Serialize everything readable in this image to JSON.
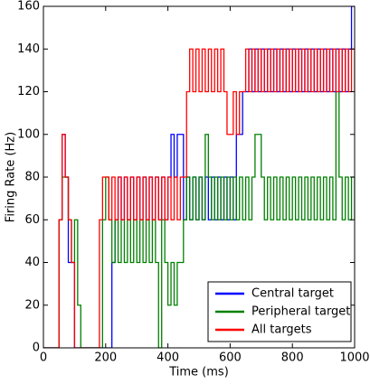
{
  "chart_data": {
    "type": "line",
    "step": true,
    "x_label": "Time (ms)",
    "y_label": "Firing Rate (Hz)",
    "x": [
      0,
      10,
      20,
      30,
      40,
      50,
      60,
      70,
      80,
      90,
      100,
      110,
      120,
      130,
      140,
      150,
      160,
      170,
      180,
      190,
      200,
      210,
      220,
      230,
      240,
      250,
      260,
      270,
      280,
      290,
      300,
      310,
      320,
      330,
      340,
      350,
      360,
      370,
      380,
      390,
      400,
      410,
      420,
      430,
      440,
      450,
      460,
      470,
      480,
      490,
      500,
      510,
      520,
      530,
      540,
      550,
      560,
      570,
      580,
      590,
      600,
      610,
      620,
      630,
      640,
      650,
      660,
      670,
      680,
      690,
      700,
      710,
      720,
      730,
      740,
      750,
      760,
      770,
      780,
      790,
      800,
      810,
      820,
      830,
      840,
      850,
      860,
      870,
      880,
      890,
      900,
      910,
      920,
      930,
      940,
      950,
      960,
      970,
      980,
      990,
      1000
    ],
    "series": [
      {
        "name": "Central target",
        "color": "#0000ff",
        "values": [
          0,
          0,
          0,
          0,
          0,
          60,
          100,
          80,
          40,
          40,
          0,
          0,
          0,
          0,
          0,
          0,
          0,
          0,
          0,
          0,
          0,
          0,
          40,
          60,
          80,
          60,
          80,
          60,
          80,
          60,
          80,
          60,
          80,
          60,
          80,
          60,
          80,
          60,
          80,
          60,
          80,
          100,
          80,
          100,
          100,
          60,
          80,
          60,
          80,
          60,
          80,
          60,
          80,
          60,
          80,
          60,
          80,
          60,
          80,
          60,
          80,
          60,
          100,
          100,
          120,
          120,
          140,
          120,
          140,
          120,
          140,
          120,
          140,
          120,
          140,
          120,
          140,
          120,
          140,
          120,
          140,
          120,
          140,
          120,
          140,
          120,
          140,
          120,
          140,
          120,
          140,
          120,
          140,
          120,
          140,
          120,
          140,
          120,
          140,
          160,
          160
        ]
      },
      {
        "name": "Peripheral target",
        "color": "#008000",
        "values": [
          0,
          0,
          0,
          0,
          0,
          60,
          80,
          80,
          60,
          40,
          60,
          20,
          0,
          0,
          0,
          0,
          0,
          0,
          0,
          60,
          80,
          60,
          40,
          60,
          40,
          60,
          40,
          60,
          40,
          60,
          40,
          60,
          40,
          60,
          40,
          60,
          40,
          0,
          60,
          40,
          20,
          40,
          20,
          40,
          40,
          60,
          80,
          60,
          80,
          60,
          80,
          60,
          100,
          80,
          60,
          80,
          60,
          80,
          60,
          80,
          60,
          80,
          60,
          80,
          60,
          80,
          60,
          80,
          100,
          100,
          80,
          60,
          80,
          60,
          80,
          60,
          80,
          60,
          80,
          60,
          80,
          60,
          80,
          60,
          80,
          60,
          80,
          60,
          80,
          60,
          80,
          60,
          80,
          60,
          120,
          80,
          60,
          80,
          60,
          80,
          60
        ]
      },
      {
        "name": "All targets",
        "color": "#ff0000",
        "values": [
          0,
          0,
          0,
          0,
          0,
          60,
          100,
          80,
          60,
          40,
          0,
          0,
          0,
          0,
          0,
          0,
          0,
          0,
          60,
          80,
          80,
          60,
          80,
          60,
          80,
          60,
          80,
          60,
          80,
          60,
          80,
          60,
          80,
          60,
          80,
          60,
          80,
          60,
          80,
          60,
          80,
          60,
          80,
          60,
          80,
          80,
          120,
          140,
          120,
          140,
          120,
          140,
          120,
          140,
          120,
          140,
          120,
          140,
          120,
          100,
          100,
          120,
          100,
          120,
          120,
          140,
          120,
          140,
          120,
          140,
          120,
          140,
          120,
          140,
          120,
          140,
          120,
          140,
          120,
          140,
          120,
          140,
          120,
          140,
          120,
          140,
          120,
          140,
          120,
          140,
          120,
          140,
          120,
          140,
          120,
          140,
          120,
          140,
          120,
          140,
          120
        ]
      }
    ],
    "xlim": [
      0,
      1000
    ],
    "xticks": [
      0,
      200,
      400,
      600,
      800,
      1000
    ],
    "ylim": [
      0,
      160
    ],
    "yticks": [
      0,
      20,
      40,
      60,
      80,
      100,
      120,
      140,
      160
    ],
    "legend": "lower right"
  }
}
